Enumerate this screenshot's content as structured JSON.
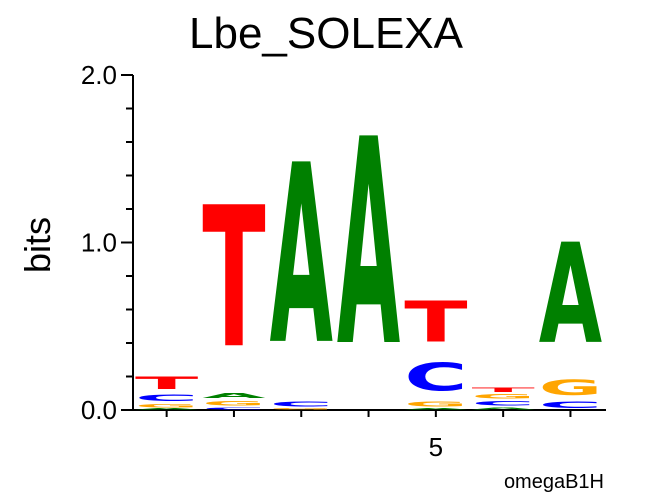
{
  "chart_data": {
    "type": "sequence_logo",
    "title": "Lbe_SOLEXA",
    "ylabel": "bits",
    "xlabel": "",
    "footer": "omegaB1H",
    "ylim": [
      0,
      2.0
    ],
    "y_ticks": [
      "0.0",
      "1.0",
      "2.0"
    ],
    "x_tick_labels": [
      {
        "position": 5,
        "label": "5"
      }
    ],
    "colors": {
      "A": "#008000",
      "C": "#0000ff",
      "G": "#ffa500",
      "T": "#ff0000"
    },
    "positions": [
      {
        "pos": 1,
        "letters": [
          {
            "base": "A",
            "bits": 0.01
          },
          {
            "base": "G",
            "bits": 0.03
          },
          {
            "base": "C",
            "bits": 0.06
          },
          {
            "base": "T",
            "bits": 0.12
          }
        ]
      },
      {
        "pos": 2,
        "letters": [
          {
            "base": "C",
            "bits": 0.02
          },
          {
            "base": "G",
            "bits": 0.04
          },
          {
            "base": "A",
            "bits": 0.05
          },
          {
            "base": "T",
            "bits": 1.35
          }
        ]
      },
      {
        "pos": 3,
        "letters": [
          {
            "base": "G",
            "bits": 0.01
          },
          {
            "base": "C",
            "bits": 0.05
          },
          {
            "base": "A",
            "bits": 1.72
          }
        ]
      },
      {
        "pos": 4,
        "letters": [
          {
            "base": "A",
            "bits": 1.98
          }
        ]
      },
      {
        "pos": 5,
        "letters": [
          {
            "base": "A",
            "bits": 0.01
          },
          {
            "base": "G",
            "bits": 0.05
          },
          {
            "base": "C",
            "bits": 0.27
          },
          {
            "base": "T",
            "bits": 0.39
          }
        ]
      },
      {
        "pos": 6,
        "letters": [
          {
            "base": "A",
            "bits": 0.02
          },
          {
            "base": "C",
            "bits": 0.04
          },
          {
            "base": "G",
            "bits": 0.04
          },
          {
            "base": "T",
            "bits": 0.04
          }
        ]
      },
      {
        "pos": 7,
        "letters": [
          {
            "base": "C",
            "bits": 0.06
          },
          {
            "base": "G",
            "bits": 0.15
          },
          {
            "base": "A",
            "bits": 0.96
          }
        ]
      }
    ]
  }
}
